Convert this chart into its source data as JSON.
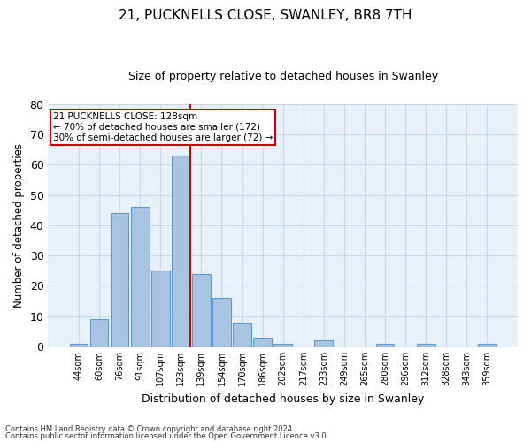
{
  "title": "21, PUCKNELLS CLOSE, SWANLEY, BR8 7TH",
  "subtitle": "Size of property relative to detached houses in Swanley",
  "xlabel": "Distribution of detached houses by size in Swanley",
  "ylabel": "Number of detached properties",
  "categories": [
    "44sqm",
    "60sqm",
    "76sqm",
    "91sqm",
    "107sqm",
    "123sqm",
    "139sqm",
    "154sqm",
    "170sqm",
    "186sqm",
    "202sqm",
    "217sqm",
    "233sqm",
    "249sqm",
    "265sqm",
    "280sqm",
    "296sqm",
    "312sqm",
    "328sqm",
    "343sqm",
    "359sqm"
  ],
  "values": [
    1,
    9,
    44,
    46,
    25,
    63,
    24,
    16,
    8,
    3,
    1,
    0,
    2,
    0,
    0,
    1,
    0,
    1,
    0,
    0,
    1
  ],
  "bar_color": "#a8c4e0",
  "bar_edge_color": "#5b9bd5",
  "grid_color": "#c8d8eb",
  "background_color": "#e8f0f8",
  "vline_x_index": 5,
  "vline_color": "#cc0000",
  "annotation_text": "21 PUCKNELLS CLOSE: 128sqm\n← 70% of detached houses are smaller (172)\n30% of semi-detached houses are larger (72) →",
  "annotation_box_color": "#cc0000",
  "ylim": [
    0,
    80
  ],
  "yticks": [
    0,
    10,
    20,
    30,
    40,
    50,
    60,
    70,
    80
  ],
  "footnote1": "Contains HM Land Registry data © Crown copyright and database right 2024.",
  "footnote2": "Contains public sector information licensed under the Open Government Licence v3.0.",
  "title_fontsize": 11,
  "subtitle_fontsize": 9
}
